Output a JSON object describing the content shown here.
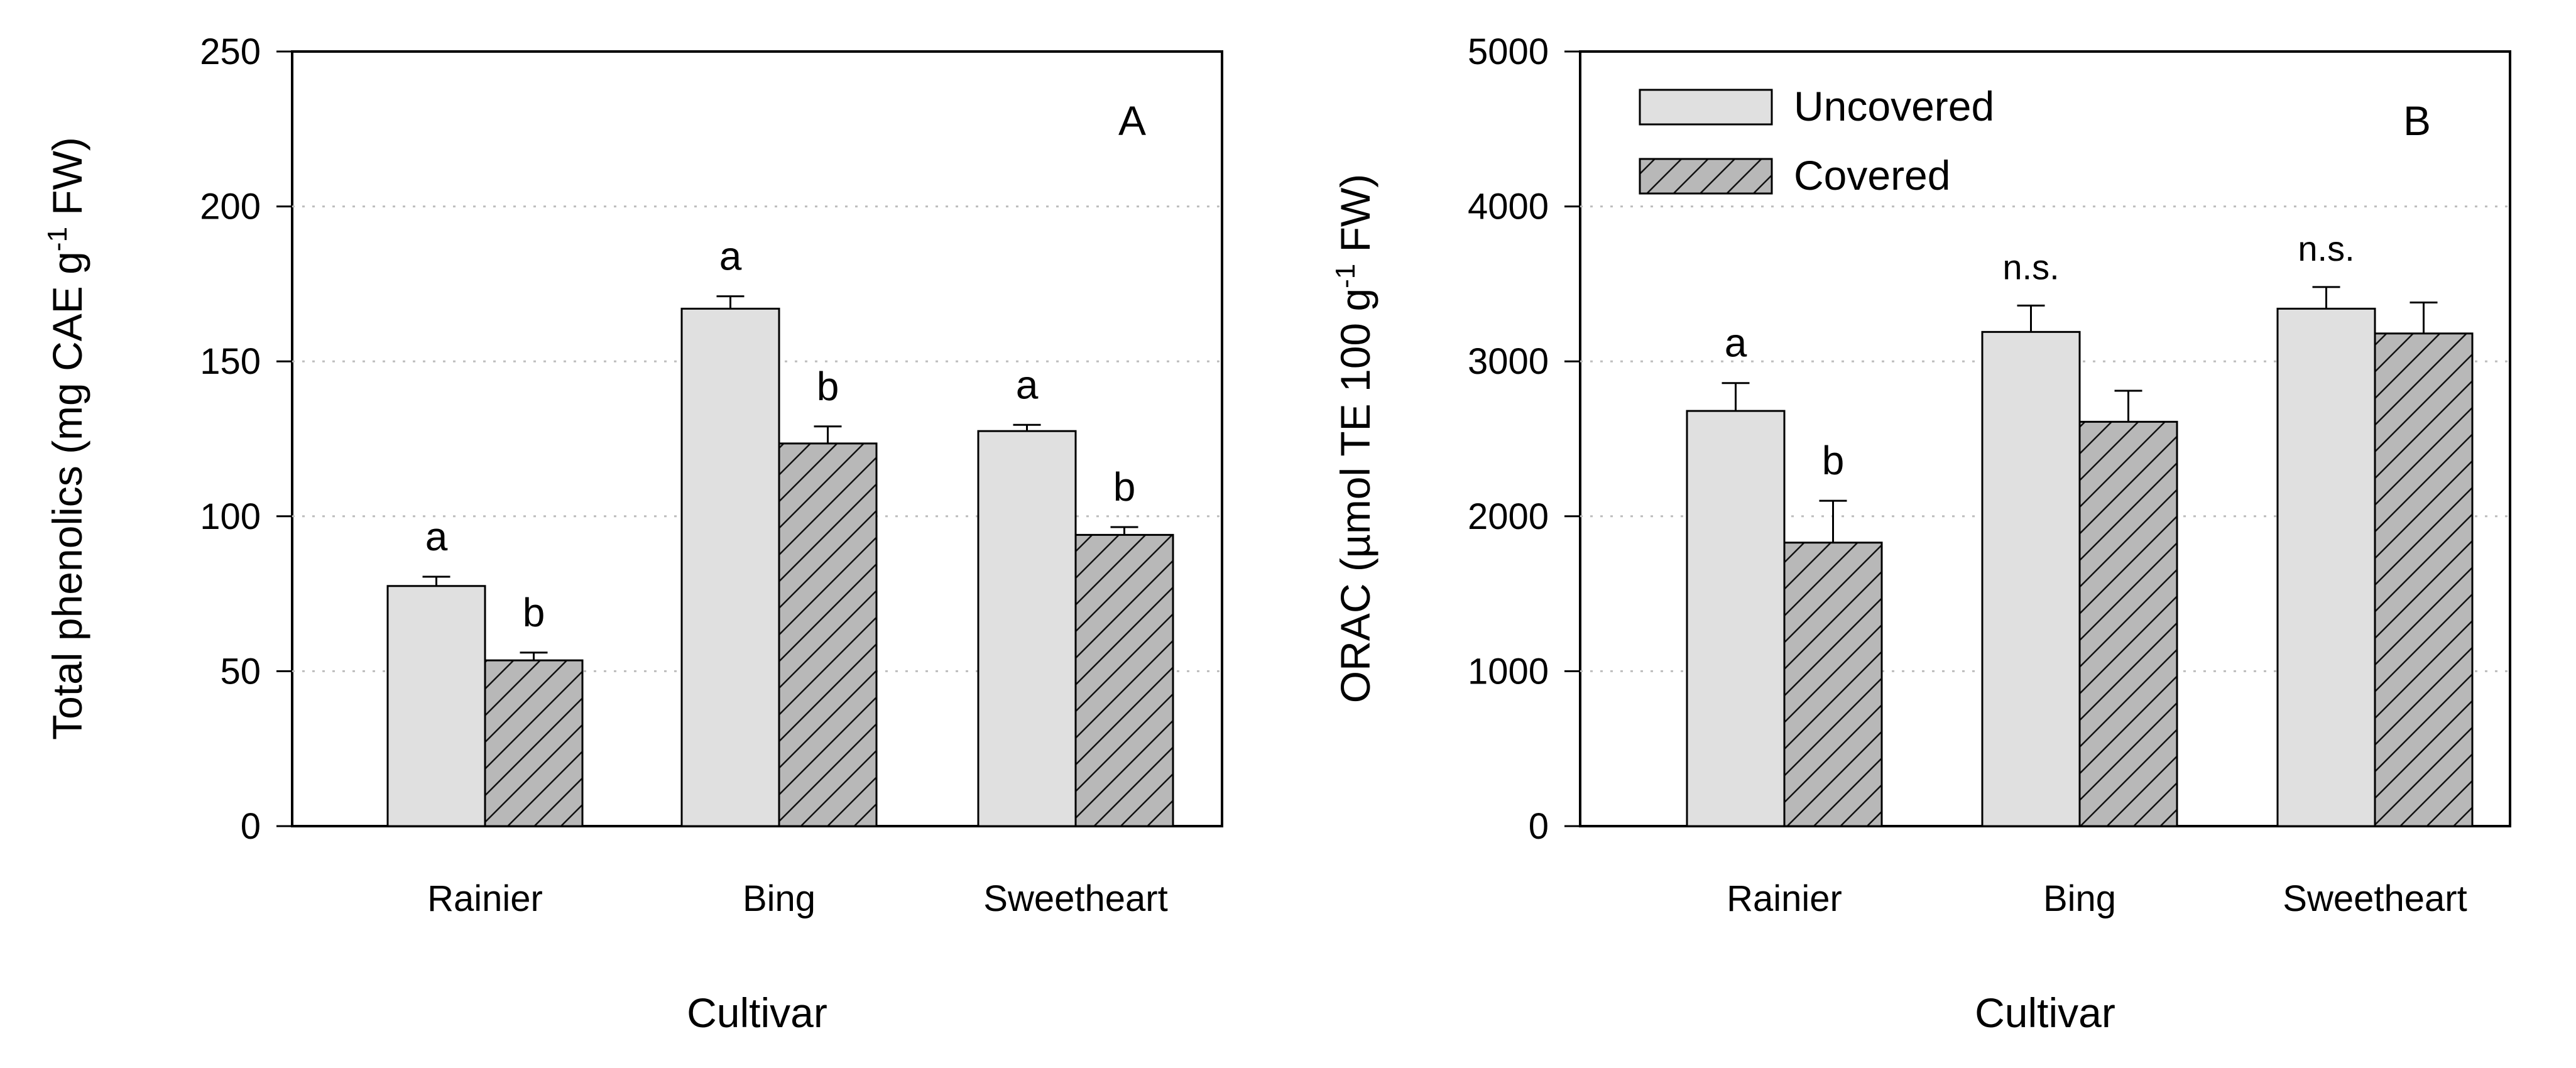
{
  "colors": {
    "uncovered_fill": "#e0e0e0",
    "covered_fill": "#b8b8b8",
    "stroke": "#000000",
    "grid": "#bdbdbd"
  },
  "legend": {
    "items": [
      "Uncovered",
      "Covered"
    ],
    "placement": "top-left of panel B"
  },
  "chart_data": [
    {
      "type": "bar",
      "panel": "A",
      "categories": [
        "Rainier",
        "Bing",
        "Sweetheart"
      ],
      "xlabel": "Cultivar",
      "ylabel": "Total phenolics (mg CAE g-1 FW)",
      "ylim": [
        0,
        250
      ],
      "yticks": [
        0,
        50,
        100,
        150,
        200,
        250
      ],
      "grid": "horizontal dotted",
      "series": [
        {
          "name": "Uncovered",
          "values": [
            77.5,
            167,
            127.5
          ],
          "errors": [
            3,
            4,
            2
          ],
          "letters": [
            "a",
            "a",
            "a"
          ]
        },
        {
          "name": "Covered",
          "values": [
            53.5,
            123.5,
            94
          ],
          "errors": [
            2.5,
            5.5,
            2.5
          ],
          "letters": [
            "b",
            "b",
            "b"
          ]
        }
      ]
    },
    {
      "type": "bar",
      "panel": "B",
      "categories": [
        "Rainier",
        "Bing",
        "Sweetheart"
      ],
      "xlabel": "Cultivar",
      "ylabel": "ORAC (µmol TE 100 g-1 FW)",
      "ylim": [
        0,
        5000
      ],
      "yticks": [
        0,
        1000,
        2000,
        3000,
        4000,
        5000
      ],
      "grid": "horizontal dotted",
      "series": [
        {
          "name": "Uncovered",
          "values": [
            2680,
            3190,
            3340
          ],
          "errors": [
            180,
            170,
            140
          ],
          "letters": [
            "a",
            "n.s.",
            "n.s."
          ]
        },
        {
          "name": "Covered",
          "values": [
            1830,
            2610,
            3180
          ],
          "errors": [
            270,
            200,
            200
          ],
          "letters": [
            "b",
            "",
            ""
          ]
        }
      ]
    }
  ]
}
